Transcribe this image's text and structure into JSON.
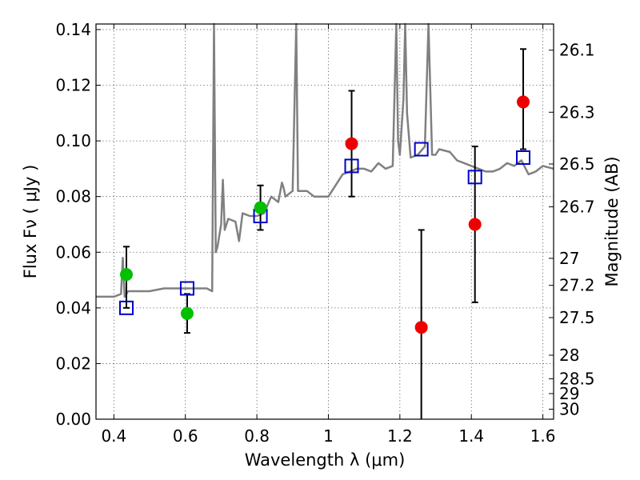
{
  "chart_data": {
    "type": "scatter",
    "title": "",
    "xlabel": "Wavelength  λ (μm)",
    "ylabel": "Flux  Fν  ( μJy )",
    "y2label": "Magnitude (AB)",
    "xlim": [
      0.35,
      1.63
    ],
    "ylim": [
      0.0,
      0.142
    ],
    "grid": true,
    "x_ticks": [
      0.4,
      0.6,
      0.8,
      1.0,
      1.2,
      1.4,
      1.6
    ],
    "x_tick_labels": [
      "0.4",
      "0.6",
      "0.8",
      "1",
      "1.2",
      "1.4",
      "1.6"
    ],
    "y_ticks": [
      0.0,
      0.02,
      0.04,
      0.06,
      0.08,
      0.1,
      0.12,
      0.14
    ],
    "y_tick_labels": [
      "0.00",
      "0.02",
      "0.04",
      "0.06",
      "0.08",
      "0.10",
      "0.12",
      "0.14"
    ],
    "y2_ticks": [
      {
        "label": "26.1",
        "flux": 0.1326
      },
      {
        "label": "26.3",
        "flux": 0.1103
      },
      {
        "label": "26.5",
        "flux": 0.0917
      },
      {
        "label": "26.7",
        "flux": 0.0763
      },
      {
        "label": "27",
        "flux": 0.0578
      },
      {
        "label": "27.2",
        "flux": 0.0481
      },
      {
        "label": "27.5",
        "flux": 0.0365
      },
      {
        "label": "28",
        "flux": 0.023
      },
      {
        "label": "28.5",
        "flux": 0.0145
      },
      {
        "label": "29",
        "flux": 0.0092
      },
      {
        "label": "30",
        "flux": 0.0036
      }
    ],
    "series": [
      {
        "kind": "template_spectrum",
        "color": "#808080",
        "x": [
          0.35,
          0.38,
          0.4,
          0.42,
          0.425,
          0.43,
          0.435,
          0.44,
          0.46,
          0.5,
          0.54,
          0.58,
          0.62,
          0.66,
          0.675,
          0.68,
          0.685,
          0.69,
          0.7,
          0.705,
          0.71,
          0.72,
          0.74,
          0.75,
          0.76,
          0.78,
          0.8,
          0.82,
          0.84,
          0.86,
          0.87,
          0.875,
          0.88,
          0.9,
          0.91,
          0.915,
          0.92,
          0.94,
          0.96,
          1.0,
          1.04,
          1.08,
          1.1,
          1.12,
          1.14,
          1.16,
          1.18,
          1.19,
          1.195,
          1.2,
          1.21,
          1.215,
          1.22,
          1.23,
          1.25,
          1.27,
          1.28,
          1.29,
          1.3,
          1.31,
          1.34,
          1.36,
          1.38,
          1.4,
          1.42,
          1.44,
          1.46,
          1.48,
          1.5,
          1.52,
          1.54,
          1.56,
          1.58,
          1.6,
          1.63
        ],
        "y": [
          0.044,
          0.044,
          0.044,
          0.045,
          0.058,
          0.044,
          0.045,
          0.046,
          0.046,
          0.046,
          0.047,
          0.047,
          0.047,
          0.047,
          0.046,
          0.142,
          0.06,
          0.062,
          0.07,
          0.086,
          0.068,
          0.072,
          0.071,
          0.064,
          0.074,
          0.073,
          0.073,
          0.074,
          0.08,
          0.078,
          0.085,
          0.083,
          0.08,
          0.082,
          0.142,
          0.082,
          0.082,
          0.082,
          0.08,
          0.08,
          0.088,
          0.09,
          0.09,
          0.089,
          0.092,
          0.09,
          0.091,
          0.142,
          0.1,
          0.095,
          0.115,
          0.142,
          0.11,
          0.094,
          0.095,
          0.098,
          0.142,
          0.095,
          0.095,
          0.097,
          0.096,
          0.093,
          0.092,
          0.091,
          0.09,
          0.089,
          0.089,
          0.09,
          0.092,
          0.091,
          0.093,
          0.088,
          0.089,
          0.091,
          0.09
        ]
      },
      {
        "kind": "model_fluxes",
        "marker": "open-square",
        "color": "#0000cc",
        "x": [
          0.435,
          0.605,
          0.81,
          1.065,
          1.26,
          1.41,
          1.545
        ],
        "y": [
          0.04,
          0.047,
          0.073,
          0.091,
          0.097,
          0.087,
          0.094
        ]
      },
      {
        "kind": "observed_optical",
        "marker": "filled-circle",
        "color": "#00c000",
        "x": [
          0.435,
          0.605,
          0.81
        ],
        "y": [
          0.052,
          0.038,
          0.076
        ],
        "yerr_low": [
          0.04,
          0.031,
          0.068
        ],
        "yerr_high": [
          0.062,
          0.045,
          0.084
        ]
      },
      {
        "kind": "observed_nir",
        "marker": "filled-circle",
        "color": "#ee0000",
        "x": [
          1.065,
          1.26,
          1.41,
          1.545
        ],
        "y": [
          0.099,
          0.033,
          0.07,
          0.114
        ],
        "yerr_low": [
          0.08,
          0.0,
          0.042,
          0.097
        ],
        "yerr_high": [
          0.118,
          0.068,
          0.098,
          0.133
        ]
      }
    ]
  }
}
